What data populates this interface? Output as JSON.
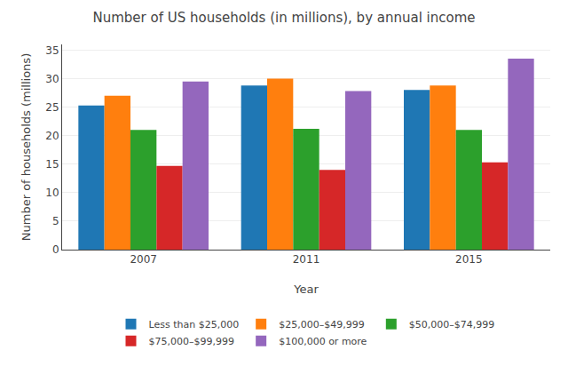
{
  "chart_data": {
    "type": "bar",
    "title": "Number of US households (in millions), by annual income",
    "xlabel": "Year",
    "ylabel": "Number of households (millions)",
    "categories": [
      "2007",
      "2011",
      "2015"
    ],
    "series": [
      {
        "name": "Less than $25,000",
        "values": [
          25.3,
          28.8,
          28.0
        ]
      },
      {
        "name": "$25,000–$49,999",
        "values": [
          27.0,
          30.0,
          28.8
        ]
      },
      {
        "name": "$50,000–$74,999",
        "values": [
          21.0,
          21.2,
          21.0
        ]
      },
      {
        "name": "$75,000–$99,999",
        "values": [
          14.7,
          14.0,
          15.3
        ]
      },
      {
        "name": "$100,000 or more",
        "values": [
          29.5,
          27.8,
          33.5
        ]
      }
    ],
    "ylim": [
      0,
      36
    ],
    "yticks": [
      0,
      5,
      10,
      15,
      20,
      25,
      30,
      35
    ],
    "grid": true,
    "legend": "bottom"
  }
}
